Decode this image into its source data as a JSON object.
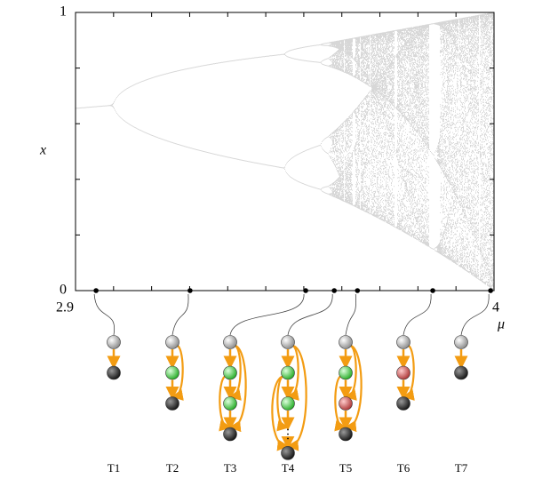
{
  "chart_data": {
    "type": "bifurcation",
    "xlabel": "μ",
    "ylabel": "x",
    "xlim": [
      2.9,
      4
    ],
    "ylim": [
      0,
      1
    ],
    "xticks": [
      2.9,
      4
    ],
    "yticks": [
      0,
      1
    ],
    "markers": {
      "x": [
        2.954,
        3.201,
        3.505,
        3.58,
        3.641,
        3.839,
        3.991
      ],
      "labels": [
        "T1",
        "T2",
        "T3",
        "T4",
        "T5",
        "T6",
        "T7"
      ]
    }
  }
}
